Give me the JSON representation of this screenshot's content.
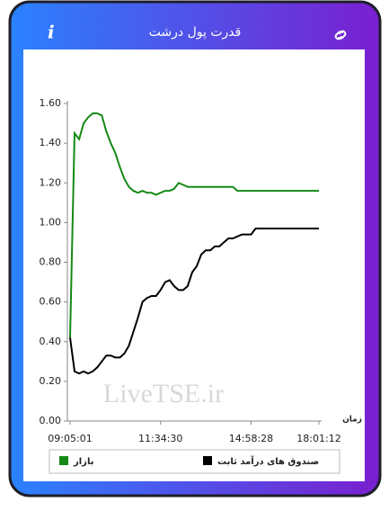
{
  "chart_data": {
    "type": "line",
    "title": "قدرت پول درشت",
    "xlabel": "زمان",
    "watermark": "LiveTSE.ir",
    "categories": [
      "09:05:01",
      null,
      null,
      null,
      null,
      null,
      null,
      null,
      null,
      null,
      null,
      null,
      null,
      null,
      null,
      null,
      null,
      null,
      null,
      null,
      "11:34:30",
      null,
      null,
      null,
      null,
      null,
      null,
      null,
      null,
      null,
      null,
      null,
      null,
      null,
      null,
      null,
      null,
      null,
      null,
      null,
      "14:58:28",
      null,
      null,
      null,
      null,
      null,
      null,
      null,
      null,
      null,
      null,
      null,
      null,
      null,
      null,
      "18:01:12"
    ],
    "series": [
      {
        "name": "بازار",
        "color": "#158a15",
        "values": [
          0.42,
          1.45,
          1.42,
          1.5,
          1.53,
          1.55,
          1.55,
          1.54,
          1.46,
          1.4,
          1.35,
          1.28,
          1.22,
          1.18,
          1.16,
          1.15,
          1.16,
          1.15,
          1.15,
          1.14,
          1.15,
          1.16,
          1.16,
          1.17,
          1.2,
          1.19,
          1.18,
          1.18,
          1.18,
          1.18,
          1.18,
          1.18,
          1.18,
          1.18,
          1.18,
          1.18,
          1.18,
          1.16,
          1.16,
          1.16,
          1.16,
          1.16,
          1.16,
          1.16,
          1.16,
          1.16,
          1.16,
          1.16,
          1.16,
          1.16,
          1.16,
          1.16,
          1.16,
          1.16,
          1.16,
          1.16
        ]
      },
      {
        "name": "صندوق های درآمد ثابت",
        "color": "#000000",
        "values": [
          0.42,
          0.25,
          0.24,
          0.25,
          0.24,
          0.25,
          0.27,
          0.3,
          0.33,
          0.33,
          0.32,
          0.32,
          0.34,
          0.38,
          0.45,
          0.52,
          0.6,
          0.62,
          0.63,
          0.63,
          0.66,
          0.7,
          0.71,
          0.68,
          0.66,
          0.66,
          0.68,
          0.75,
          0.78,
          0.84,
          0.86,
          0.86,
          0.88,
          0.88,
          0.9,
          0.92,
          0.92,
          0.93,
          0.94,
          0.94,
          0.94,
          0.97,
          0.97,
          0.97,
          0.97,
          0.97,
          0.97,
          0.97,
          0.97,
          0.97,
          0.97,
          0.97,
          0.97,
          0.97,
          0.97,
          0.97
        ]
      }
    ],
    "ylim": [
      0,
      1.6
    ],
    "yticks": [
      {
        "value": 0,
        "label": "0.00"
      },
      {
        "value": 0.2,
        "label": "0.20"
      },
      {
        "value": 0.4,
        "label": "0.40"
      },
      {
        "value": 0.6,
        "label": "0.60"
      },
      {
        "value": 0.8,
        "label": "0.80"
      },
      {
        "value": 1,
        "label": "1.00"
      },
      {
        "value": 1.2,
        "label": "1.20"
      },
      {
        "value": 1.4,
        "label": "1.40"
      },
      {
        "value": 1.6,
        "label": "1.60"
      }
    ],
    "grid": false,
    "legend": "bottom"
  }
}
